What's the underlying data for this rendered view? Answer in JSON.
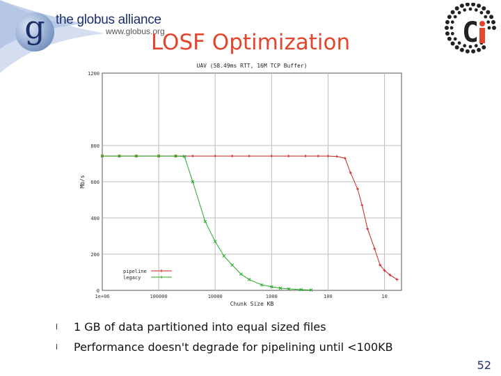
{
  "header": {
    "brand_name": "the globus alliance",
    "brand_url": "www.globus.org",
    "logo_letter": "g",
    "title": "LOSF Optimization"
  },
  "chart_data": {
    "type": "line",
    "title": "UAV (58.49ms RTT, 16M TCP Buffer)",
    "xlabel": "Chunk Size KB",
    "ylabel": "Mb/s",
    "x_scale": "log-reversed",
    "xlim": [
      1000000,
      5
    ],
    "ylim": [
      0,
      1200
    ],
    "x_tick_labels": [
      "1e+06",
      "100000",
      "10000",
      "1000",
      "100",
      "10"
    ],
    "x_ticks": [
      1000000,
      100000,
      10000,
      1000,
      100,
      10
    ],
    "y_ticks": [
      0,
      200,
      400,
      600,
      800,
      1200
    ],
    "y_tick_labels": [
      "0",
      "200",
      "400",
      "600",
      "800",
      "1200"
    ],
    "grid": true,
    "legend_position": "bottom-left",
    "series": [
      {
        "name": "pipeline",
        "color": "#cc2222",
        "x": [
          1000000,
          500000,
          250000,
          100000,
          50000,
          25000,
          10000,
          5000,
          2500,
          1000,
          500,
          250,
          150,
          100,
          70,
          50,
          40,
          30,
          25,
          20,
          15,
          12,
          10,
          8,
          6
        ],
        "y": [
          742,
          742,
          742,
          742,
          742,
          742,
          742,
          742,
          742,
          742,
          742,
          742,
          742,
          742,
          740,
          730,
          650,
          560,
          470,
          340,
          230,
          140,
          110,
          85,
          60
        ]
      },
      {
        "name": "legacy",
        "color": "#22aa22",
        "x": [
          1000000,
          500000,
          250000,
          100000,
          50000,
          35000,
          25000,
          15000,
          10000,
          7000,
          5000,
          3500,
          2500,
          1500,
          1000,
          700,
          500,
          300,
          200
        ],
        "y": [
          742,
          742,
          742,
          742,
          742,
          740,
          600,
          380,
          270,
          190,
          140,
          90,
          60,
          30,
          20,
          12,
          8,
          4,
          2
        ]
      }
    ]
  },
  "bullets": [
    {
      "symbol": "l",
      "text": "1 GB of data partitioned into equal sized files"
    },
    {
      "symbol": "l",
      "text": "Performance doesn't degrade for pipelining until <100KB"
    }
  ],
  "page_number": "52"
}
